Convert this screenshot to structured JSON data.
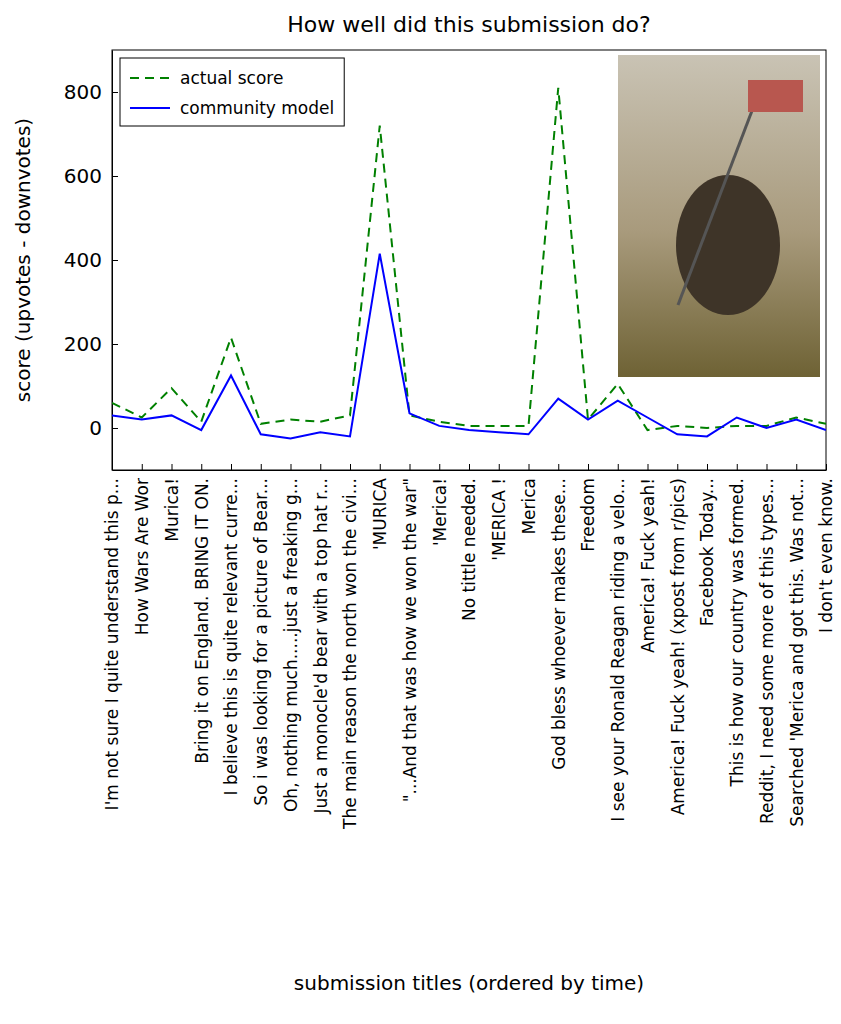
{
  "chart_data": {
    "type": "line",
    "title": "How well did this submission do?",
    "x_label": "submission titles (ordered by time)",
    "y_label": "score (upvotes - downvotes)",
    "categories": [
      "I'm not sure I quite understand this p...",
      "How Wars Are Wor",
      "Murica!",
      "Bring it on England. BRING IT ON.",
      "I believe this is quite relevant curre...",
      "So i was looking for a picture of Bear...",
      "Oh, nothing much.....just a freaking g...",
      "Just a monocle'd bear with a top hat r...",
      "The main reason the north won the civi...",
      "'MURICA",
      "\"...And that was how we won the war\"",
      "'Merica!",
      "No tittle needed.",
      "'MERICA !",
      "Merica",
      "God bless whoever makes these...",
      "Freedom",
      "I see your Ronald Reagan riding a velo...",
      "America! Fuck yeah!",
      "America! Fuck yeah! (xpost from r/pics)",
      "Facebook Today...",
      "This is how our country was formed.",
      "Reddit, I need some more of this types...",
      "Searched 'Merica and got this. Was not...",
      "I don't even know."
    ],
    "series": [
      {
        "name": "actual score",
        "color": "#008000",
        "line_style": "dashed",
        "values": [
          60,
          25,
          95,
          15,
          215,
          10,
          20,
          15,
          30,
          720,
          30,
          15,
          5,
          5,
          5,
          810,
          20,
          105,
          -5,
          5,
          0,
          5,
          5,
          25,
          10
        ]
      },
      {
        "name": "community model",
        "color": "#0000ff",
        "line_style": "solid",
        "values": [
          30,
          20,
          30,
          -5,
          125,
          -15,
          -25,
          -10,
          -20,
          415,
          35,
          5,
          -5,
          -10,
          -15,
          70,
          20,
          65,
          25,
          -15,
          -20,
          25,
          0,
          20,
          -5
        ]
      }
    ],
    "ylim": [
      -100,
      900
    ],
    "yticks": [
      0,
      200,
      400,
      600,
      800
    ],
    "legend": "upper left",
    "grid": false
  }
}
